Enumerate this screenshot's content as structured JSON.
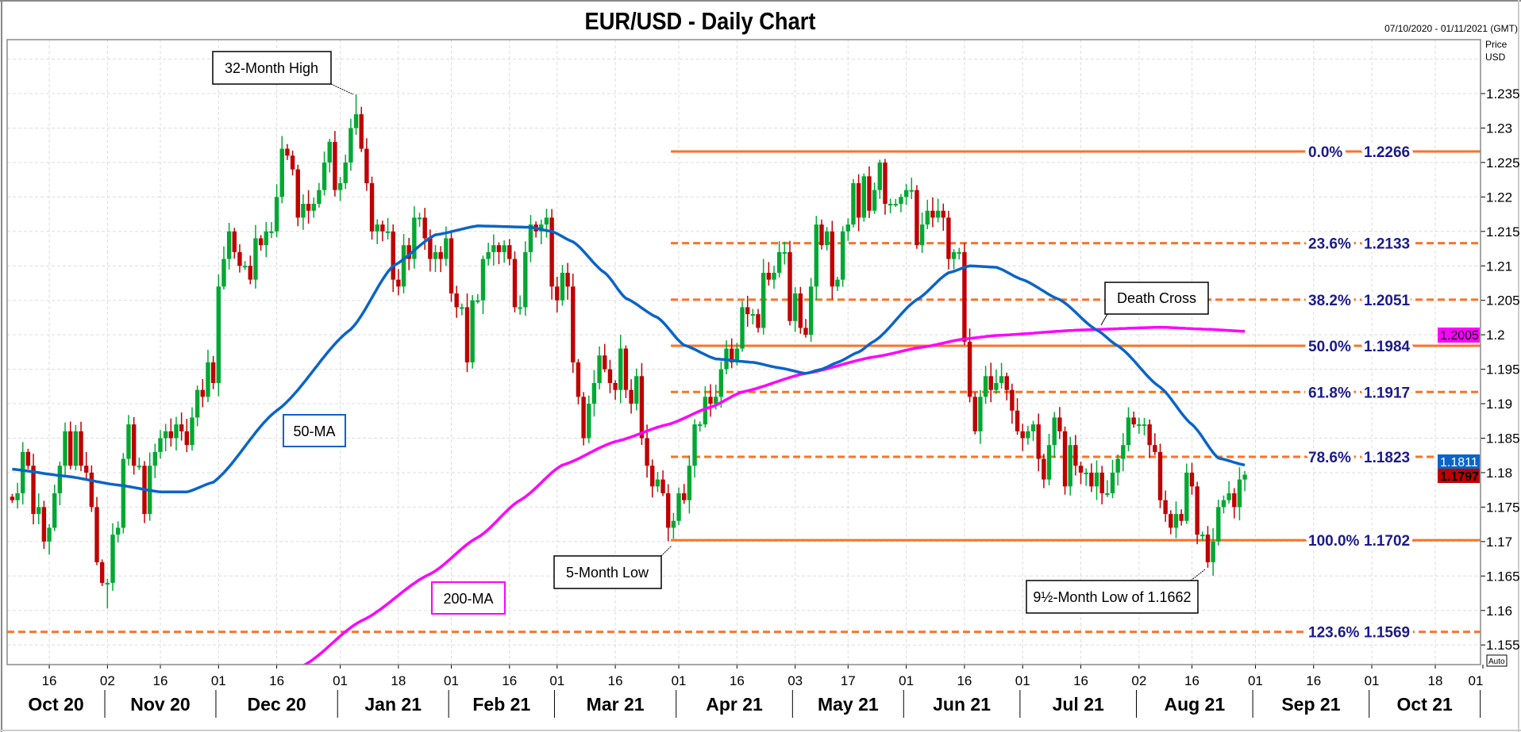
{
  "header": {
    "title": "EUR/USD - Daily Chart",
    "date_range": "07/10/2020 - 01/11/2021 (GMT)",
    "axis_unit_1": "Price",
    "axis_unit_2": "USD",
    "auto_label": "Auto"
  },
  "colors": {
    "up": "#00a832",
    "down": "#c00000",
    "ma50": "#0a64c8",
    "ma200": "#ff00ff",
    "fib": "#fa7228",
    "fib_text": "#1a1a8c"
  },
  "chart_data": {
    "type": "candlestick",
    "title": "EUR/USD - Daily Chart",
    "ylabel": "Price USD",
    "ylim": [
      1.152,
      1.2428
    ],
    "y_ticks": [
      "1.155",
      "1.16",
      "1.165",
      "1.17",
      "1.175",
      "1.18",
      "1.185",
      "1.19",
      "1.195",
      "1.2",
      "1.205",
      "1.21",
      "1.215",
      "1.22",
      "1.225",
      "1.23",
      "1.235"
    ],
    "grid": true,
    "first_open": 1.1765,
    "closes": [
      1.176,
      1.177,
      1.183,
      1.181,
      1.174,
      1.175,
      1.17,
      1.172,
      1.177,
      1.181,
      1.186,
      1.181,
      1.186,
      1.181,
      1.18,
      1.175,
      1.167,
      1.164,
      1.164,
      1.171,
      1.172,
      1.182,
      1.187,
      1.181,
      1.181,
      1.174,
      1.181,
      1.183,
      1.185,
      1.186,
      1.185,
      1.187,
      1.186,
      1.184,
      1.188,
      1.192,
      1.191,
      1.196,
      1.193,
      1.207,
      1.211,
      1.215,
      1.212,
      1.21,
      1.21,
      1.208,
      1.214,
      1.213,
      1.215,
      1.215,
      1.22,
      1.227,
      1.226,
      1.224,
      1.217,
      1.219,
      1.218,
      1.219,
      1.221,
      1.225,
      1.228,
      1.221,
      1.222,
      1.225,
      1.23,
      1.232,
      1.227,
      1.222,
      1.215,
      1.216,
      1.215,
      1.215,
      1.208,
      1.207,
      1.213,
      1.211,
      1.217,
      1.217,
      1.214,
      1.211,
      1.212,
      1.211,
      1.214,
      1.206,
      1.204,
      1.204,
      1.196,
      1.205,
      1.205,
      1.211,
      1.212,
      1.213,
      1.212,
      1.213,
      1.211,
      1.204,
      1.204,
      1.212,
      1.216,
      1.215,
      1.216,
      1.217,
      1.207,
      1.205,
      1.209,
      1.207,
      1.196,
      1.191,
      1.185,
      1.19,
      1.193,
      1.197,
      1.195,
      1.193,
      1.192,
      1.198,
      1.192,
      1.19,
      1.194,
      1.185,
      1.181,
      1.178,
      1.179,
      1.177,
      1.172,
      1.173,
      1.177,
      1.176,
      1.181,
      1.187,
      1.187,
      1.191,
      1.19,
      1.191,
      1.195,
      1.198,
      1.196,
      1.198,
      1.204,
      1.203,
      1.203,
      1.201,
      1.209,
      1.208,
      1.209,
      1.212,
      1.212,
      1.202,
      1.206,
      1.201,
      1.2,
      1.207,
      1.216,
      1.213,
      1.215,
      1.207,
      1.208,
      1.215,
      1.216,
      1.222,
      1.217,
      1.223,
      1.218,
      1.221,
      1.225,
      1.219,
      1.219,
      1.219,
      1.22,
      1.221,
      1.221,
      1.213,
      1.216,
      1.218,
      1.217,
      1.218,
      1.217,
      1.211,
      1.212,
      1.212,
      1.199,
      1.191,
      1.186,
      1.191,
      1.194,
      1.192,
      1.193,
      1.194,
      1.192,
      1.189,
      1.186,
      1.185,
      1.186,
      1.187,
      1.182,
      1.179,
      1.184,
      1.188,
      1.186,
      1.178,
      1.184,
      1.181,
      1.18,
      1.18,
      1.178,
      1.18,
      1.177,
      1.177,
      1.18,
      1.182,
      1.184,
      1.188,
      1.187,
      1.187,
      1.187,
      1.184,
      1.183,
      1.176,
      1.174,
      1.172,
      1.174,
      1.173,
      1.18,
      1.178,
      1.171,
      1.171,
      1.167,
      1.17,
      1.175,
      1.176,
      1.177,
      1.175,
      1.179,
      1.1797
    ],
    "extremes": [
      {
        "index": 65,
        "high": 1.2349
      },
      {
        "index": 125,
        "low": 1.1704
      },
      {
        "index": 226,
        "low": 1.1662
      },
      {
        "index": 18,
        "low": 1.1603
      }
    ],
    "ma50": [
      [
        0,
        1.1805
      ],
      [
        10,
        1.1795
      ],
      [
        20,
        1.1782
      ],
      [
        28,
        1.1772
      ],
      [
        33,
        1.1772
      ],
      [
        38,
        1.1786
      ],
      [
        50,
        1.189
      ],
      [
        64,
        1.2008
      ],
      [
        72,
        1.21
      ],
      [
        80,
        1.2145
      ],
      [
        88,
        1.2158
      ],
      [
        98,
        1.2156
      ],
      [
        102,
        1.215
      ],
      [
        106,
        1.2135
      ],
      [
        112,
        1.209
      ],
      [
        116,
        1.2053
      ],
      [
        122,
        1.2025
      ],
      [
        127,
        1.1985
      ],
      [
        133,
        1.1965
      ],
      [
        140,
        1.196
      ],
      [
        145,
        1.1952
      ],
      [
        150,
        1.1944
      ],
      [
        153,
        1.195
      ],
      [
        156,
        1.196
      ],
      [
        160,
        1.1975
      ],
      [
        163,
        1.1991
      ],
      [
        171,
        1.2051
      ],
      [
        177,
        1.209
      ],
      [
        181,
        1.21
      ],
      [
        186,
        1.2098
      ],
      [
        191,
        1.208
      ],
      [
        198,
        1.2051
      ],
      [
        205,
        1.2007
      ],
      [
        209,
        1.1984
      ],
      [
        217,
        1.1924
      ],
      [
        223,
        1.187
      ],
      [
        228,
        1.1821
      ],
      [
        233,
        1.1811
      ]
    ],
    "ma200": [
      [
        55,
        1.152
      ],
      [
        66,
        1.1585
      ],
      [
        79,
        1.1653
      ],
      [
        88,
        1.1706
      ],
      [
        96,
        1.176
      ],
      [
        104,
        1.1811
      ],
      [
        114,
        1.1845
      ],
      [
        124,
        1.187
      ],
      [
        132,
        1.1895
      ],
      [
        138,
        1.1917
      ],
      [
        150,
        1.1944
      ],
      [
        163,
        1.1968
      ],
      [
        172,
        1.1982
      ],
      [
        180,
        1.1994
      ],
      [
        186,
        1.1999
      ],
      [
        202,
        1.2007
      ],
      [
        217,
        1.2011
      ],
      [
        226,
        1.2008
      ],
      [
        233,
        1.2005
      ]
    ],
    "x_ticks": [
      {
        "label": "16",
        "index": 7
      },
      {
        "label": "02",
        "index": 18
      },
      {
        "label": "16",
        "index": 28
      },
      {
        "label": "01",
        "index": 39
      },
      {
        "label": "16",
        "index": 50
      },
      {
        "label": "01",
        "index": 62
      },
      {
        "label": "18",
        "index": 73
      },
      {
        "label": "01",
        "index": 83
      },
      {
        "label": "16",
        "index": 94
      },
      {
        "label": "01",
        "index": 103
      },
      {
        "label": "16",
        "index": 114
      },
      {
        "label": "01",
        "index": 126
      },
      {
        "label": "16",
        "index": 137
      },
      {
        "label": "03",
        "index": 148
      },
      {
        "label": "17",
        "index": 158
      },
      {
        "label": "01",
        "index": 169
      },
      {
        "label": "16",
        "index": 180
      },
      {
        "label": "01",
        "index": 191
      },
      {
        "label": "16",
        "index": 202
      },
      {
        "label": "02",
        "index": 213
      },
      {
        "label": "16",
        "index": 223
      },
      {
        "label": "01",
        "index": 235
      },
      {
        "label": "16",
        "index": 246
      },
      {
        "label": "01",
        "index": 257
      },
      {
        "label": "18",
        "index": 269
      },
      {
        "label": "01",
        "index": 278
      }
    ],
    "months": [
      {
        "label": "Oct 20",
        "from": -1,
        "to": 17.5
      },
      {
        "label": "Nov 20",
        "from": 17.5,
        "to": 38.5
      },
      {
        "label": "Dec 20",
        "from": 38.5,
        "to": 61.5
      },
      {
        "label": "Jan 21",
        "from": 61.5,
        "to": 82.5
      },
      {
        "label": "Feb 21",
        "from": 82.5,
        "to": 102.5
      },
      {
        "label": "Mar 21",
        "from": 102.5,
        "to": 125.5
      },
      {
        "label": "Apr 21",
        "from": 125.5,
        "to": 147.5
      },
      {
        "label": "May 21",
        "from": 147.5,
        "to": 168.5
      },
      {
        "label": "Jun 21",
        "from": 168.5,
        "to": 190.5
      },
      {
        "label": "Jul 21",
        "from": 190.5,
        "to": 212.5
      },
      {
        "label": "Aug 21",
        "from": 212.5,
        "to": 234.5
      },
      {
        "label": "Sep 21",
        "from": 234.5,
        "to": 256.5
      },
      {
        "label": "Oct 21",
        "from": 256.5,
        "to": 277.5
      }
    ],
    "fib_start_index": 124.5,
    "fib_levels": [
      {
        "pct": "0.0%",
        "value": "1.2266",
        "price": 1.2266,
        "style": "solid"
      },
      {
        "pct": "23.6%",
        "value": "1.2133",
        "price": 1.2133,
        "style": "dashed"
      },
      {
        "pct": "38.2%",
        "value": "1.2051",
        "price": 1.2051,
        "style": "dashed"
      },
      {
        "pct": "50.0%",
        "value": "1.1984",
        "price": 1.1984,
        "style": "solid"
      },
      {
        "pct": "61.8%",
        "value": "1.1917",
        "price": 1.1917,
        "style": "dashed"
      },
      {
        "pct": "78.6%",
        "value": "1.1823",
        "price": 1.1823,
        "style": "dashed"
      },
      {
        "pct": "100.0%",
        "value": "1.1702",
        "price": 1.1702,
        "style": "solid"
      },
      {
        "pct": "123.6%",
        "value": "1.1569",
        "price": 1.1569,
        "style": "dashed",
        "full": true
      }
    ],
    "price_labels": {
      "ma200": "1.2005",
      "ma50": "1.1811",
      "last": "1.1797"
    },
    "annotations": {
      "high": "32-Month High",
      "ma50": "50-MA",
      "ma200": "200-MA",
      "low5": "5-Month Low",
      "low9": "9½-Month Low of 1.1662",
      "cross": "Death Cross"
    }
  }
}
